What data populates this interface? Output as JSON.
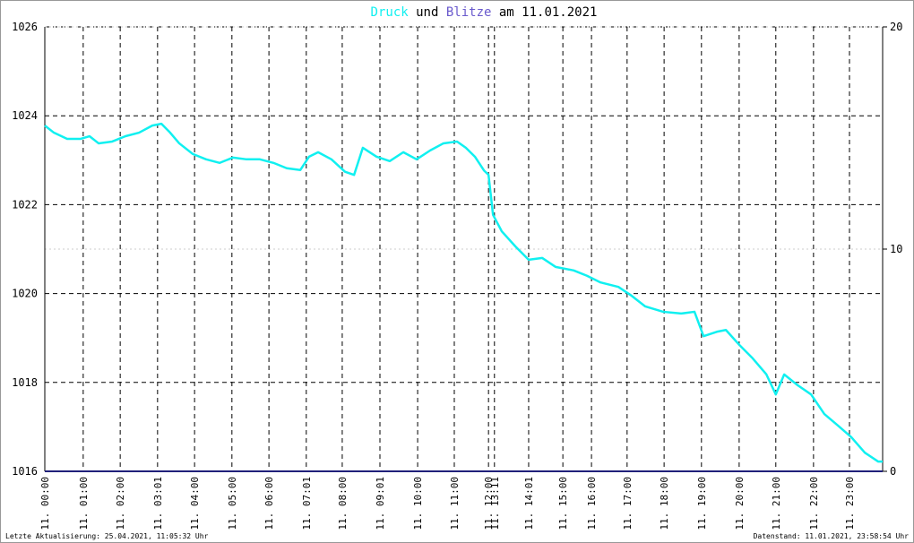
{
  "chart_data": {
    "type": "line",
    "title_joiner": "und",
    "title_suffix": "am 11.01.2021",
    "x": [
      0,
      0.26,
      0.64,
      1.03,
      1.28,
      1.54,
      1.93,
      2.31,
      2.7,
      3.08,
      3.34,
      3.59,
      3.85,
      4.24,
      4.62,
      5.01,
      5.39,
      5.78,
      6.16,
      6.55,
      6.93,
      7.32,
      7.57,
      7.83,
      8.21,
      8.6,
      8.86,
      9.11,
      9.5,
      9.88,
      10.27,
      10.65,
      11.04,
      11.42,
      11.81,
      12.06,
      12.32,
      12.58,
      12.71,
      12.84,
      13.09,
      13.48,
      13.86,
      14.25,
      14.63,
      15.15,
      15.53,
      15.92,
      16.43,
      16.81,
      17.2,
      17.71,
      18.23,
      18.61,
      18.87,
      19.25,
      19.51,
      19.9,
      20.28,
      20.67,
      20.94,
      21.18,
      21.56,
      21.95,
      22.33,
      22.72,
      23.1,
      23.49,
      23.87,
      24.0
    ],
    "series": [
      {
        "name": "Druck",
        "color": "#10f0f0",
        "values": [
          1023.78,
          1023.62,
          1023.48,
          1023.48,
          1023.54,
          1023.38,
          1023.42,
          1023.54,
          1023.62,
          1023.78,
          1023.82,
          1023.62,
          1023.38,
          1023.14,
          1023.02,
          1022.94,
          1023.06,
          1023.02,
          1023.02,
          1022.94,
          1022.82,
          1022.78,
          1023.08,
          1023.18,
          1023.02,
          1022.74,
          1022.67,
          1023.28,
          1023.08,
          1022.98,
          1023.18,
          1023.02,
          1023.22,
          1023.38,
          1023.42,
          1023.28,
          1023.08,
          1022.77,
          1022.67,
          1021.77,
          1021.4,
          1021.06,
          1020.76,
          1020.8,
          1020.6,
          1020.52,
          1020.4,
          1020.25,
          1020.15,
          1019.95,
          1019.71,
          1019.59,
          1019.55,
          1019.59,
          1019.04,
          1019.14,
          1019.18,
          1018.84,
          1018.54,
          1018.18,
          1017.73,
          1018.18,
          1017.94,
          1017.73,
          1017.29,
          1017.03,
          1016.77,
          1016.42,
          1016.22,
          1016.22
        ]
      },
      {
        "name": "Blitze",
        "color": "#20207a",
        "axis": "y2",
        "x": [
          0,
          24.0
        ],
        "values": [
          0,
          0
        ]
      }
    ],
    "xlim": [
      0,
      24.0
    ],
    "xticks": [
      {
        "value": 0,
        "label": "11. 00:00"
      },
      {
        "value": 1.1,
        "label": "11. 01:00"
      },
      {
        "value": 2.16,
        "label": "11. 02:00"
      },
      {
        "value": 3.23,
        "label": "11. 03:01"
      },
      {
        "value": 4.29,
        "label": "11. 04:00"
      },
      {
        "value": 5.36,
        "label": "11. 05:00"
      },
      {
        "value": 6.42,
        "label": "11. 06:00"
      },
      {
        "value": 7.49,
        "label": "11. 07:01"
      },
      {
        "value": 8.52,
        "label": "11. 08:00"
      },
      {
        "value": 9.6,
        "label": "11. 09:01"
      },
      {
        "value": 10.68,
        "label": "11. 10:00"
      },
      {
        "value": 11.73,
        "label": "11. 11:00"
      },
      {
        "value": 12.71,
        "label": "11. 12:00"
      },
      {
        "value": 12.88,
        "label": "11. 13:11"
      },
      {
        "value": 13.86,
        "label": "11. 14:01"
      },
      {
        "value": 14.84,
        "label": "11. 15:00"
      },
      {
        "value": 15.66,
        "label": "11. 16:00"
      },
      {
        "value": 16.68,
        "label": "11. 17:00"
      },
      {
        "value": 17.74,
        "label": "11. 18:00"
      },
      {
        "value": 18.81,
        "label": "11. 19:00"
      },
      {
        "value": 19.89,
        "label": "11. 20:00"
      },
      {
        "value": 20.94,
        "label": "11. 21:00"
      },
      {
        "value": 22.02,
        "label": "11. 22:00"
      },
      {
        "value": 23.05,
        "label": "11. 23:00"
      }
    ],
    "ylim": [
      1016,
      1026
    ],
    "yticks": [
      1016,
      1018,
      1020,
      1022,
      1024,
      1026
    ],
    "y2lim": [
      0,
      20
    ],
    "y2ticks": [
      0,
      10,
      20
    ],
    "grid": true,
    "footer_left": "Letzte Aktualisierung: 25.04.2021, 11:05:32 Uhr",
    "footer_right": "Datenstand: 11.01.2021, 23:58:54 Uhr"
  }
}
